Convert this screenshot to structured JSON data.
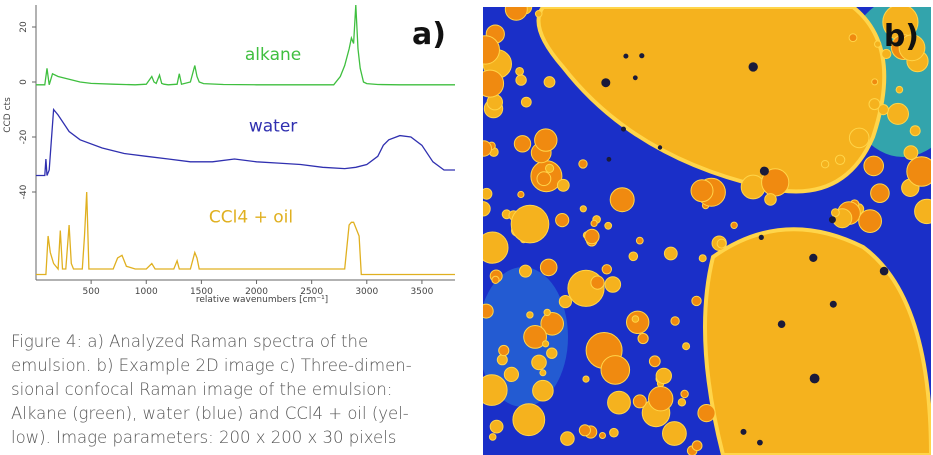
{
  "chart_data": {
    "type": "line",
    "panel_label": "a)",
    "xlabel": "relative wavenumbers [cm⁻¹]",
    "ylabel": "CCD cts",
    "xlim": [
      0,
      3800
    ],
    "ylim": [
      -72,
      28
    ],
    "x_ticks": [
      500,
      1000,
      1500,
      2000,
      2500,
      3000,
      3500
    ],
    "y_ticks": [
      20,
      0,
      -20,
      -40
    ],
    "grid": false,
    "series": [
      {
        "name": "alkane",
        "color": "#3fbf3f",
        "x": [
          0,
          80,
          100,
          120,
          150,
          200,
          300,
          400,
          500,
          700,
          900,
          1000,
          1050,
          1070,
          1090,
          1120,
          1140,
          1160,
          1200,
          1280,
          1300,
          1320,
          1400,
          1440,
          1460,
          1480,
          1520,
          1700,
          2000,
          2400,
          2700,
          2760,
          2800,
          2840,
          2860,
          2880,
          2900,
          2920,
          2940,
          2970,
          3000,
          3100,
          3300,
          3600,
          3800
        ],
        "y": [
          -1,
          -1,
          5,
          -1,
          3,
          2,
          1,
          0,
          -0.5,
          -0.8,
          -1,
          -0.8,
          2,
          0,
          -0.5,
          2.5,
          -0.5,
          -0.8,
          -1,
          -0.8,
          3,
          -0.8,
          0,
          6,
          2,
          0,
          -0.6,
          -0.9,
          -1,
          -1,
          -1,
          2,
          6,
          12,
          16,
          14,
          28,
          12,
          5,
          0,
          -0.6,
          -0.9,
          -1,
          -1,
          -1
        ]
      },
      {
        "name": "water",
        "color": "#3030b0",
        "x": [
          0,
          80,
          90,
          100,
          120,
          160,
          200,
          300,
          400,
          600,
          800,
          1000,
          1200,
          1400,
          1600,
          1800,
          2000,
          2200,
          2400,
          2600,
          2800,
          2900,
          3000,
          3100,
          3150,
          3200,
          3300,
          3400,
          3500,
          3600,
          3700,
          3800
        ],
        "y": [
          -34,
          -34,
          -28,
          -34,
          -32,
          -10,
          -12,
          -18,
          -21,
          -24,
          -26,
          -27,
          -28,
          -29,
          -29,
          -28,
          -29,
          -29.5,
          -30,
          -31,
          -31.5,
          -31,
          -30,
          -27,
          -23,
          -21,
          -19.5,
          -20,
          -23,
          -29,
          -32,
          -32
        ]
      },
      {
        "name": "CCl4 + oil",
        "color": "#e0b020",
        "x": [
          0,
          90,
          110,
          130,
          160,
          200,
          220,
          240,
          270,
          300,
          320,
          340,
          380,
          420,
          440,
          460,
          480,
          520,
          600,
          700,
          740,
          780,
          820,
          900,
          1000,
          1050,
          1080,
          1100,
          1150,
          1250,
          1280,
          1300,
          1330,
          1400,
          1440,
          1460,
          1480,
          1520,
          1600,
          1800,
          2000,
          2200,
          2400,
          2600,
          2700,
          2800,
          2840,
          2860,
          2880,
          2900,
          2930,
          2950,
          3000,
          3100,
          3300,
          3500,
          3800
        ],
        "y": [
          -70,
          -70,
          -56,
          -62,
          -66,
          -68,
          -54,
          -68,
          -68,
          -52,
          -66,
          -68,
          -68,
          -68,
          -56,
          -40,
          -68,
          -68,
          -68,
          -68,
          -64,
          -63,
          -67,
          -68,
          -68,
          -66,
          -68,
          -68,
          -68,
          -68,
          -65,
          -68,
          -68,
          -68,
          -62,
          -64,
          -68,
          -68,
          -68,
          -68,
          -68,
          -68,
          -68,
          -68,
          -68,
          -68,
          -52,
          -51,
          -51,
          -53,
          -56,
          -70,
          -70,
          -70,
          -70,
          -70,
          -70
        ]
      }
    ]
  },
  "caption": {
    "lines": [
      "Figure 4: a) Analyzed Raman spectra of the",
      "emulsion. b) Example 2D image c) Three-dimen-",
      "sional confocal Raman image of the emulsion:",
      "Alkane (green), water (blue) and CCl4 + oil (yel-",
      "low). Image parameters: 200 x 200 x 30 pixels"
    ]
  },
  "image_panel": {
    "label": "b)",
    "colors": {
      "background": "#1a2fc8",
      "droplet": "#f5b21e",
      "droplet_rim": "#ffd54a",
      "droplet_core": "#f08a10",
      "accent_green": "#3ed5a0",
      "dot": "#1a1a3a"
    }
  }
}
